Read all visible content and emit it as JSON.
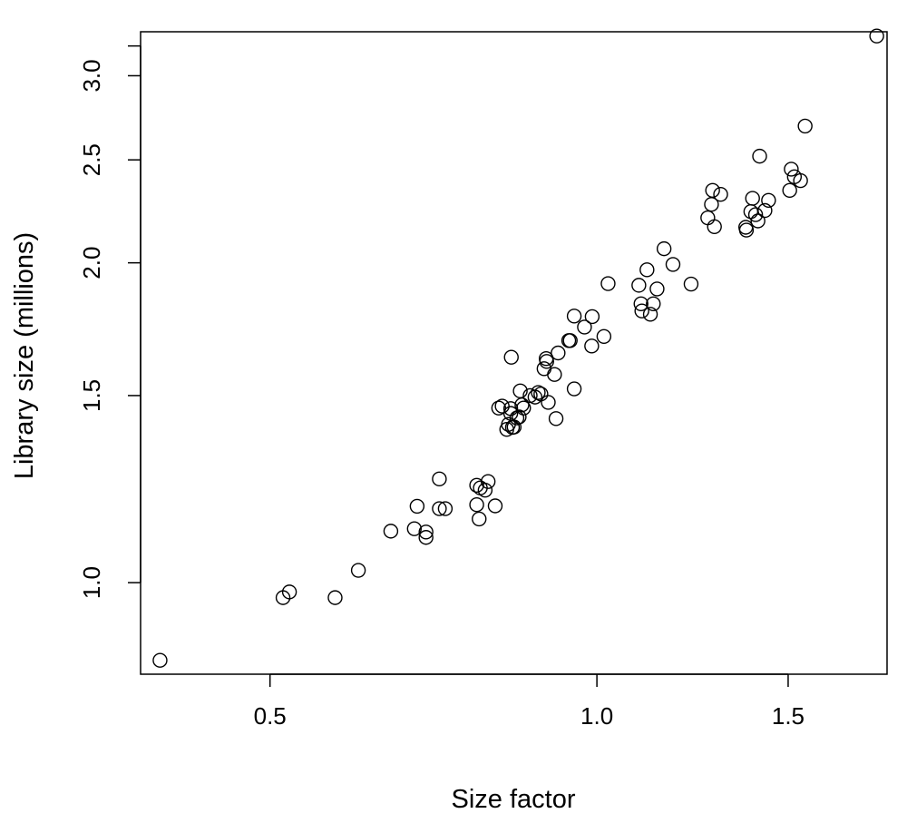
{
  "chart_data": {
    "type": "scatter",
    "title": "",
    "xlabel": "Size factor",
    "ylabel": "Library size (millions)",
    "x_scale": "log",
    "y_scale": "log",
    "xlim": [
      0.38,
      1.85
    ],
    "ylim": [
      0.82,
      3.3
    ],
    "x_ticks": [
      0.5,
      1.0,
      1.5
    ],
    "x_tick_labels": [
      "0.5",
      "1.0",
      "1.5"
    ],
    "y_ticks": [
      1.0,
      1.5,
      2.0,
      2.5,
      3.0
    ],
    "y_tick_labels": [
      "1.0",
      "1.5",
      "2.0",
      "2.5",
      "3.0"
    ],
    "grid": false,
    "legend": "none",
    "marker": "open-circle",
    "marker_color": "#000000",
    "points": [
      [
        0.396,
        0.845
      ],
      [
        0.514,
        0.968
      ],
      [
        0.521,
        0.98
      ],
      [
        0.574,
        0.968
      ],
      [
        0.603,
        1.027
      ],
      [
        0.646,
        1.118
      ],
      [
        0.679,
        1.124
      ],
      [
        0.696,
        1.116
      ],
      [
        0.696,
        1.103
      ],
      [
        0.683,
        1.18
      ],
      [
        0.716,
        1.174
      ],
      [
        0.716,
        1.252
      ],
      [
        0.725,
        1.174
      ],
      [
        0.775,
        1.184
      ],
      [
        0.775,
        1.235
      ],
      [
        0.779,
        1.148
      ],
      [
        0.781,
        1.228
      ],
      [
        0.789,
        1.222
      ],
      [
        0.794,
        1.245
      ],
      [
        0.806,
        1.181
      ],
      [
        0.812,
        1.46
      ],
      [
        0.818,
        1.466
      ],
      [
        0.826,
        1.394
      ],
      [
        0.829,
        1.409
      ],
      [
        0.833,
        1.443
      ],
      [
        0.833,
        1.458
      ],
      [
        0.834,
        1.63
      ],
      [
        0.836,
        1.4
      ],
      [
        0.839,
        1.401
      ],
      [
        0.844,
        1.429
      ],
      [
        0.848,
        1.432
      ],
      [
        0.85,
        1.515
      ],
      [
        0.853,
        1.47
      ],
      [
        0.856,
        1.46
      ],
      [
        0.868,
        1.5
      ],
      [
        0.877,
        1.495
      ],
      [
        0.883,
        1.51
      ],
      [
        0.888,
        1.505
      ],
      [
        0.894,
        1.59
      ],
      [
        0.898,
        1.625
      ],
      [
        0.899,
        1.615
      ],
      [
        0.902,
        1.478
      ],
      [
        0.914,
        1.57
      ],
      [
        0.917,
        1.427
      ],
      [
        0.921,
        1.645
      ],
      [
        0.942,
        1.69
      ],
      [
        0.945,
        1.69
      ],
      [
        0.953,
        1.782
      ],
      [
        0.953,
        1.522
      ],
      [
        0.974,
        1.74
      ],
      [
        0.989,
        1.67
      ],
      [
        0.99,
        1.78
      ],
      [
        1.015,
        1.705
      ],
      [
        1.024,
        1.912
      ],
      [
        1.093,
        1.905
      ],
      [
        1.098,
        1.83
      ],
      [
        1.1,
        1.802
      ],
      [
        1.112,
        1.97
      ],
      [
        1.12,
        1.789
      ],
      [
        1.127,
        1.83
      ],
      [
        1.136,
        1.89
      ],
      [
        1.153,
        2.062
      ],
      [
        1.175,
        1.993
      ],
      [
        1.221,
        1.91
      ],
      [
        1.265,
        2.205
      ],
      [
        1.275,
        2.27
      ],
      [
        1.278,
        2.34
      ],
      [
        1.283,
        2.163
      ],
      [
        1.3,
        2.32
      ],
      [
        1.371,
        2.16
      ],
      [
        1.373,
        2.147
      ],
      [
        1.386,
        2.235
      ],
      [
        1.391,
        2.3
      ],
      [
        1.4,
        2.22
      ],
      [
        1.407,
        2.19
      ],
      [
        1.412,
        2.52
      ],
      [
        1.428,
        2.24
      ],
      [
        1.439,
        2.29
      ],
      [
        1.505,
        2.34
      ],
      [
        1.51,
        2.45
      ],
      [
        1.52,
        2.41
      ],
      [
        1.54,
        2.39
      ],
      [
        1.555,
        2.69
      ],
      [
        1.81,
        3.27
      ]
    ]
  }
}
